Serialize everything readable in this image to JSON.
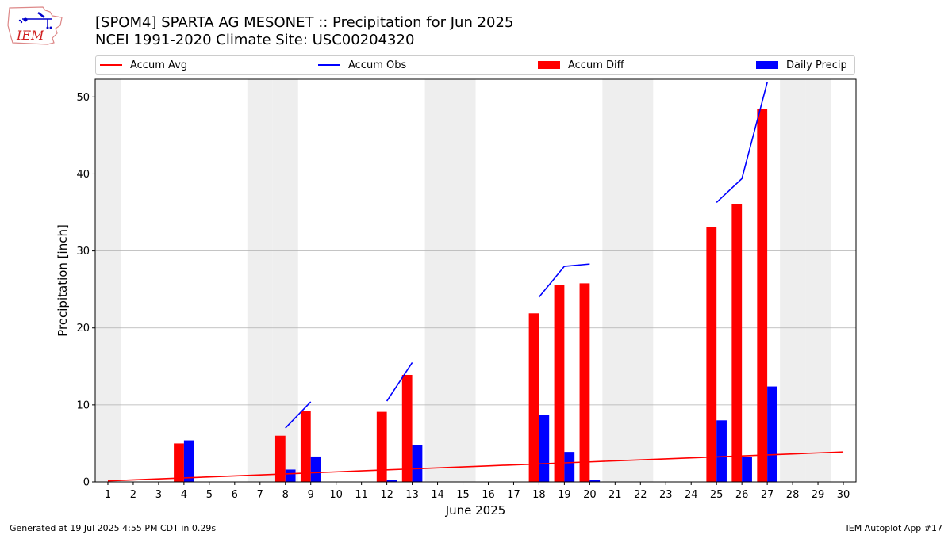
{
  "header": {
    "title_line1": "[SPOM4] SPARTA AG MESONET :: Precipitation for Jun 2025",
    "title_line2": "NCEI 1991-2020 Climate Site: USC00204320",
    "logo_text": "IEM"
  },
  "footer": {
    "generated": "Generated at 19 Jul 2025 4:55 PM CDT in 0.29s",
    "app": "IEM Autoplot App #17"
  },
  "colors": {
    "accum_avg": "#ff0000",
    "accum_obs": "#0000ff",
    "accum_diff": "#ff0000",
    "daily_precip": "#0000ff",
    "weekend_band": "#eeeeee",
    "grid": "#b0b0b0"
  },
  "chart_data": {
    "type": "bar",
    "xlabel": "June 2025",
    "ylabel": "Precipitation [inch]",
    "ylim": [
      0,
      52.3
    ],
    "yticks": [
      0,
      10,
      20,
      30,
      40,
      50
    ],
    "grid": "y",
    "legend_position": "top",
    "x": [
      1,
      2,
      3,
      4,
      5,
      6,
      7,
      8,
      9,
      10,
      11,
      12,
      13,
      14,
      15,
      16,
      17,
      18,
      19,
      20,
      21,
      22,
      23,
      24,
      25,
      26,
      27,
      28,
      29,
      30
    ],
    "weekend_days": [
      1,
      7,
      8,
      14,
      15,
      21,
      22,
      28,
      29
    ],
    "series": [
      {
        "name": "Accum Avg",
        "kind": "line",
        "values": [
          0.13,
          0.26,
          0.39,
          0.52,
          0.65,
          0.78,
          0.91,
          1.04,
          1.17,
          1.3,
          1.43,
          1.56,
          1.69,
          1.82,
          1.95,
          2.08,
          2.21,
          2.34,
          2.47,
          2.6,
          2.73,
          2.86,
          2.99,
          3.12,
          3.25,
          3.38,
          3.51,
          3.64,
          3.77,
          3.9
        ]
      },
      {
        "name": "Accum Obs",
        "kind": "line",
        "values": [
          null,
          null,
          null,
          null,
          null,
          null,
          null,
          7.0,
          10.4,
          null,
          null,
          10.5,
          15.5,
          null,
          null,
          null,
          null,
          24.0,
          28.0,
          28.3,
          null,
          null,
          null,
          null,
          36.3,
          39.4,
          51.9,
          null,
          null,
          null
        ]
      },
      {
        "name": "Accum Diff",
        "kind": "bar",
        "values": [
          0,
          0,
          0,
          5.0,
          0,
          0,
          0,
          6.0,
          9.2,
          0,
          0,
          9.1,
          13.9,
          0,
          0,
          0,
          0,
          21.9,
          25.6,
          25.8,
          0,
          0,
          0,
          0,
          33.1,
          36.1,
          48.4,
          0,
          0,
          0
        ]
      },
      {
        "name": "Daily Precip",
        "kind": "bar",
        "values": [
          0,
          0,
          0,
          5.4,
          0,
          0,
          0,
          1.6,
          3.3,
          0,
          0,
          0.3,
          4.8,
          0,
          0,
          0,
          0,
          8.7,
          3.9,
          0.3,
          0,
          0,
          0,
          0,
          8.0,
          3.2,
          12.4,
          0,
          0,
          0
        ]
      }
    ]
  }
}
